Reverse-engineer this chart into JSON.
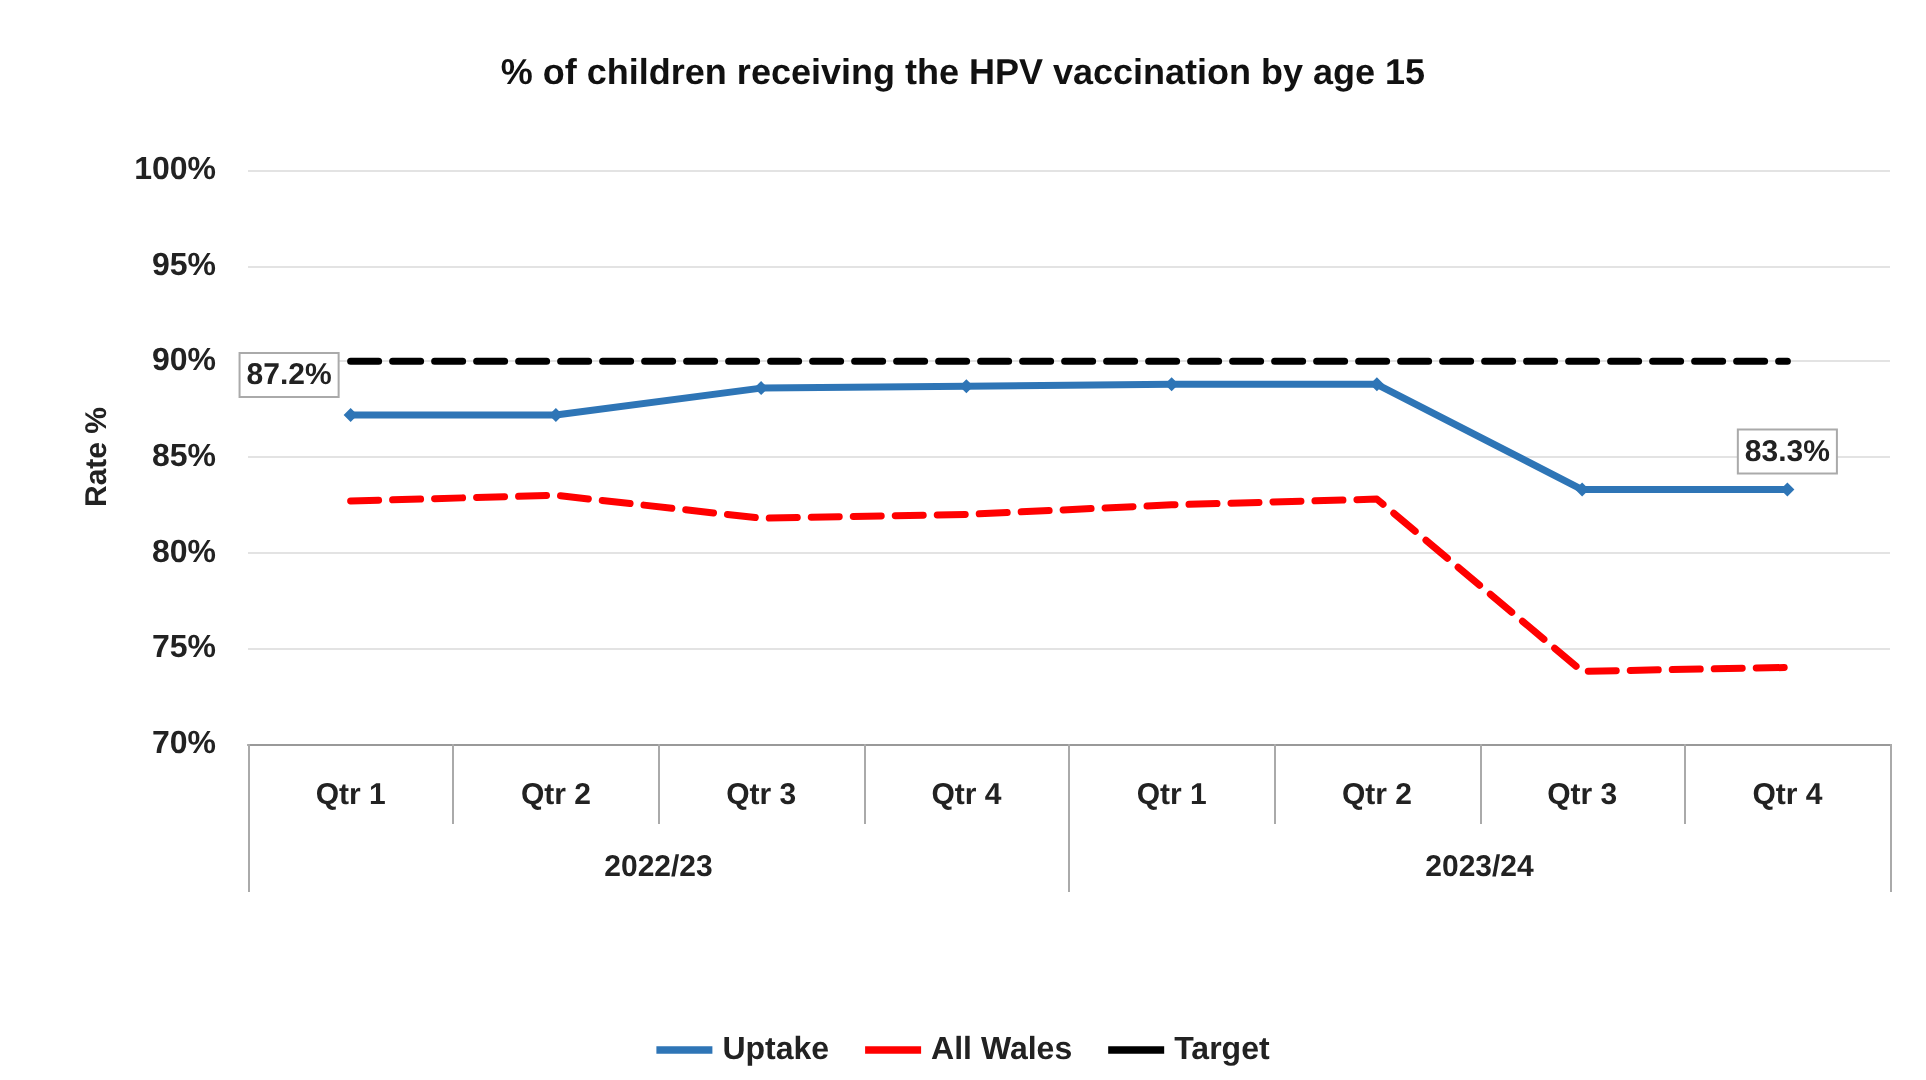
{
  "chart_data": {
    "type": "line",
    "title": "% of children receiving the HPV vaccination by age 15",
    "ylabel": "Rate %",
    "categories": [
      "Qtr 1",
      "Qtr 2",
      "Qtr 3",
      "Qtr 4",
      "Qtr 1",
      "Qtr 2",
      "Qtr 3",
      "Qtr 4"
    ],
    "annotations": [
      "2022/23",
      "2023/24"
    ],
    "series": [
      {
        "name": "Uptake",
        "color": "#2e75b6",
        "values": [
          87.2,
          87.2,
          88.6,
          88.7,
          88.8,
          88.8,
          83.3,
          83.3
        ],
        "marker": "diamond",
        "line_style": "solid",
        "value_labels": [
          "87.2%",
          null,
          null,
          null,
          null,
          null,
          null,
          "83.3%"
        ]
      },
      {
        "name": "All Wales",
        "color": "#ff0000",
        "values": [
          82.7,
          83.0,
          81.8,
          82.0,
          82.5,
          82.8,
          73.8,
          74.0
        ],
        "marker": "none",
        "line_style": "dashed"
      },
      {
        "name": "Target",
        "color": "#000000",
        "values": [
          90,
          90,
          90,
          90,
          90,
          90,
          90,
          90
        ],
        "marker": "none",
        "line_style": "dashed"
      }
    ],
    "ylim": [
      70,
      100
    ],
    "yticks": [
      {
        "value": 70,
        "label": "70%"
      },
      {
        "value": 75,
        "label": "75%"
      },
      {
        "value": 80,
        "label": "80%"
      },
      {
        "value": 85,
        "label": "85%"
      },
      {
        "value": 90,
        "label": "90%"
      },
      {
        "value": 95,
        "label": "95%"
      },
      {
        "value": 100,
        "label": "100%"
      }
    ],
    "grid": "y",
    "legend": "bottom"
  }
}
